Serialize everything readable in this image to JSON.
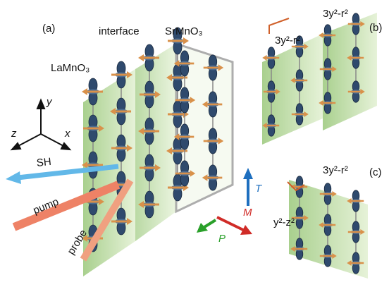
{
  "panel_a": {
    "label": "(a)",
    "interface": "interface",
    "right_material": "SrMnO₃",
    "left_material": "LaMnO₃",
    "axes": {
      "y": "y",
      "z": "z",
      "x": "x"
    },
    "beams": {
      "sh": "SH",
      "pump": "pump",
      "probe": "probe"
    },
    "vectors": {
      "t": "T",
      "m": "M",
      "p": "P"
    }
  },
  "panel_b": {
    "label": "(b)",
    "orbital_top": "3y²-r²",
    "orbital_left": "3y²-r²"
  },
  "panel_c": {
    "label": "(c)",
    "orbital_top": "3y²-r²",
    "orbital_left": "y²-z²"
  }
}
